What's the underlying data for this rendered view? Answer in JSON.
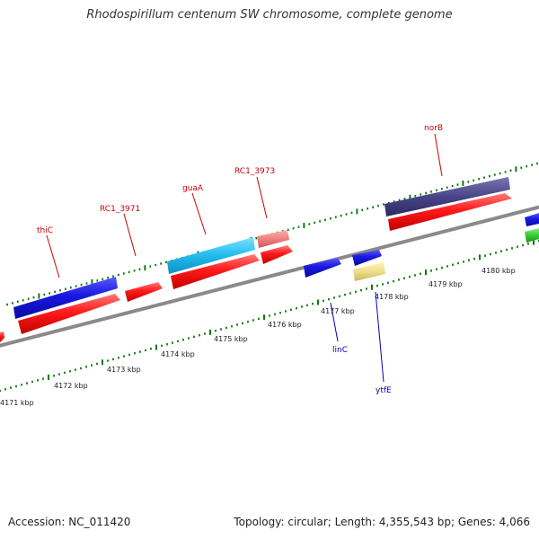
{
  "title": "Rhodospirillum centenum SW chromosome, complete genome",
  "footer": {
    "accession": "Accession: NC_011420",
    "summary": "Topology: circular; Length: 4,355,543 bp; Genes: 4,066"
  },
  "kbp_labels": [
    "4171 kbp",
    "4172 kbp",
    "4173 kbp",
    "4174 kbp",
    "4175 kbp",
    "4176 kbp",
    "4177 kbp",
    "4178 kbp",
    "4179 kbp",
    "4180 kbp"
  ],
  "gene_labels": {
    "top": [
      "thiC",
      "RC1_3971",
      "guaA",
      "RC1_3973",
      "norB"
    ],
    "bottom": [
      "linC",
      "ytfE"
    ]
  },
  "colors": {
    "label_top": "#cc0000",
    "label_bottom": "#0000bb",
    "tick": "#117711",
    "backbone": "#888888",
    "cds": "#ff2020",
    "blue_gene": "#1a1ad8",
    "cyan_gene": "#22bbee",
    "purple_gene": "#484488",
    "pink_gene": "#ee8888",
    "yellow_gene": "#eedd88",
    "green_gene": "#33cc33"
  }
}
